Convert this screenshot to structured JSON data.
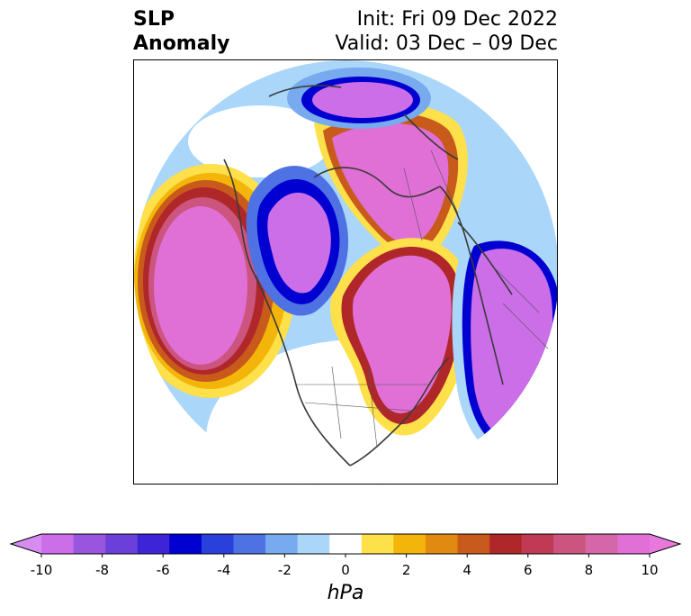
{
  "header": {
    "left_lines": [
      "SLP",
      "Anomaly"
    ],
    "right_lines": [
      "Init: Fri 09 Dec 2022",
      "Valid: 03 Dec – 09 Dec"
    ]
  },
  "map": {
    "projection": "north-polar-stereographic",
    "anomalies": [
      {
        "region": "Gulf of Alaska / North Pacific",
        "sign": "positive",
        "peak_hpa": 10
      },
      {
        "region": "Arctic Ocean / Siberia",
        "sign": "positive",
        "peak_hpa": 10
      },
      {
        "region": "Canada / Greenland / North Atlantic",
        "sign": "positive",
        "peak_hpa": 10
      },
      {
        "region": "Western Canada / Beaufort",
        "sign": "negative",
        "peak_hpa": -10
      },
      {
        "region": "Barents Sea",
        "sign": "negative",
        "peak_hpa": -10
      },
      {
        "region": "Europe / NE Atlantic",
        "sign": "negative",
        "peak_hpa": -10
      }
    ]
  },
  "colorbar": {
    "unit": "hPa",
    "extend": "both",
    "boundaries": [
      -10,
      -9,
      -8,
      -7,
      -6,
      -5,
      -4,
      -3,
      -2,
      -1,
      1,
      2,
      3,
      4,
      5,
      6,
      7,
      8,
      9,
      10
    ],
    "colors": [
      "#cc6ee8",
      "#9a55df",
      "#6b3fd9",
      "#3d24d6",
      "#0000d0",
      "#2a40dc",
      "#4e72e4",
      "#77aaee",
      "#aad6fa",
      "#ffffff",
      "#fde04a",
      "#f3b50a",
      "#e08a12",
      "#c85a1c",
      "#b0272a",
      "#c03a55",
      "#cc5580",
      "#d566aa",
      "#e070d6"
    ],
    "ticks": [
      "-10",
      "-8",
      "-6",
      "-4",
      "-2",
      "0",
      "2",
      "4",
      "6",
      "8",
      "10"
    ],
    "under_color": "#d78cf0",
    "over_color": "#e878dc"
  }
}
